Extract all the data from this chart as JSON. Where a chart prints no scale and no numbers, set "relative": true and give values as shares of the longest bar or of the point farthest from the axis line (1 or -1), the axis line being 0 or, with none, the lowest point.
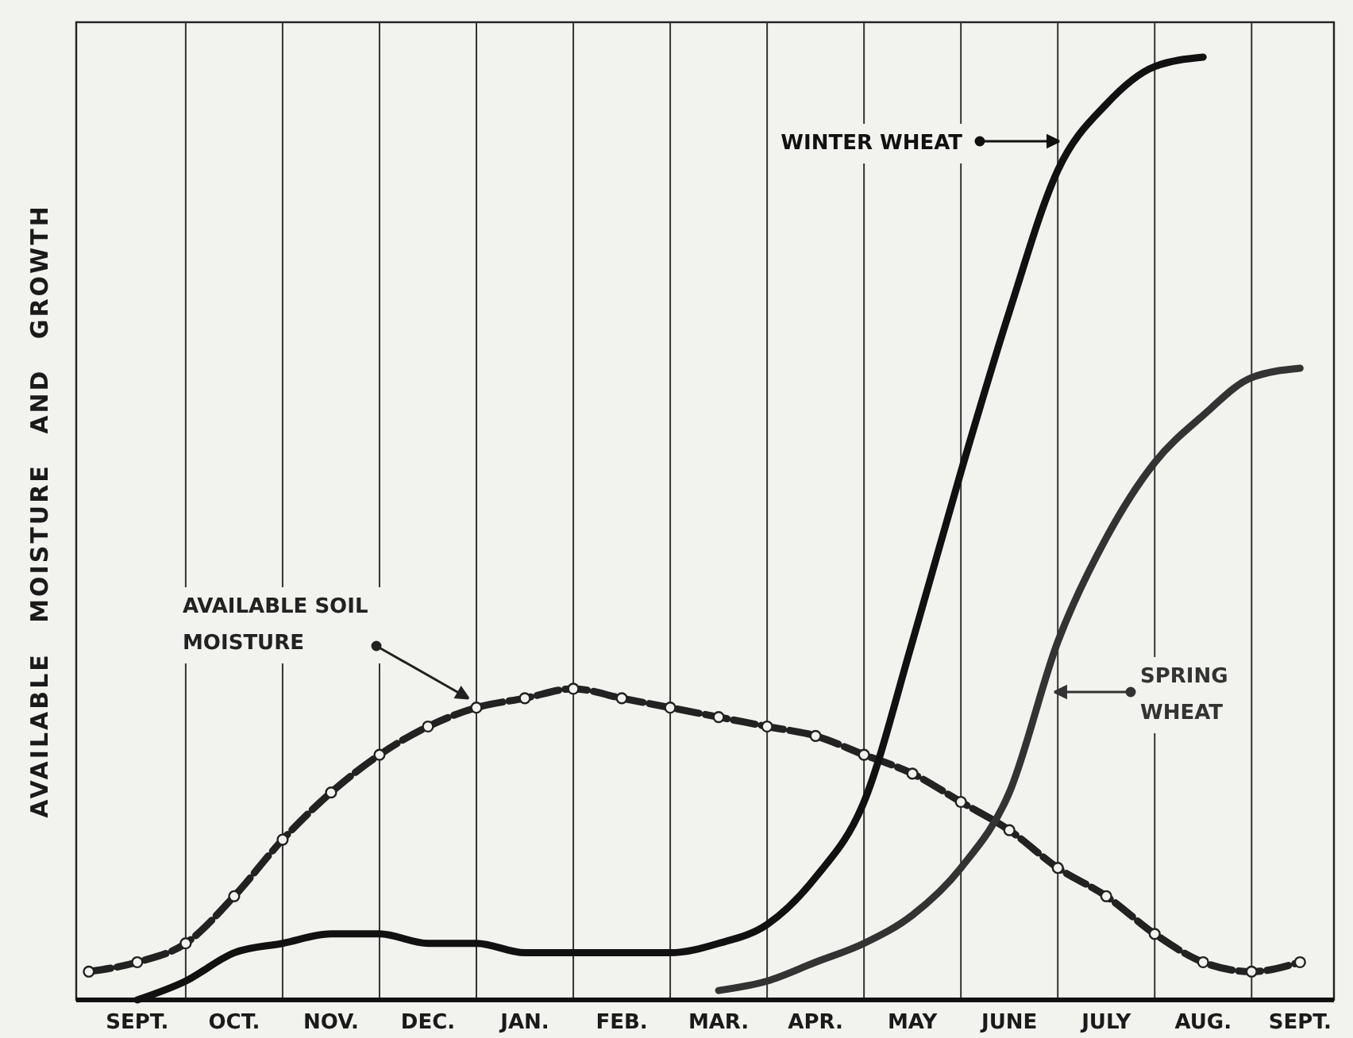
{
  "chart_data": {
    "type": "line",
    "relative": true,
    "ylabel": "AVAILABLE MOISTURE AND GROWTH",
    "categories": [
      null,
      "SEPT.",
      null,
      "OCT.",
      null,
      "NOV.",
      null,
      "DEC.",
      null,
      "JAN.",
      null,
      "FEB.",
      null,
      "MAR.",
      null,
      "APR.",
      null,
      "MAY",
      null,
      "JUNE",
      null,
      "JULY",
      null,
      "AUG.",
      null,
      "SEPT."
    ],
    "grid": "x",
    "series": [
      {
        "name": "AVAILABLE SOIL MOISTURE",
        "color": "#222222",
        "marker": "circle",
        "line_style": "dashed",
        "values": [
          0.03,
          0.04,
          0.06,
          0.11,
          0.17,
          0.22,
          0.26,
          0.29,
          0.31,
          0.32,
          0.33,
          0.32,
          0.31,
          0.3,
          0.29,
          0.28,
          0.26,
          0.24,
          0.21,
          0.18,
          0.14,
          0.11,
          0.07,
          0.04,
          0.03,
          0.04
        ]
      },
      {
        "name": "WINTER WHEAT",
        "color": "#111111",
        "marker": "none",
        "line_style": "solid",
        "values": [
          null,
          0,
          0.02,
          0.05,
          0.06,
          0.07,
          0.07,
          0.06,
          0.06,
          0.05,
          0.05,
          0.05,
          0.05,
          0.06,
          0.08,
          0.13,
          0.21,
          0.38,
          0.56,
          0.73,
          0.88,
          0.95,
          0.99,
          1.0,
          null,
          null
        ]
      },
      {
        "name": "SPRING WHEAT",
        "color": "#333333",
        "marker": "none",
        "line_style": "solid",
        "values": [
          null,
          null,
          null,
          null,
          null,
          null,
          null,
          null,
          null,
          null,
          null,
          null,
          null,
          0.01,
          0.02,
          0.04,
          0.06,
          0.09,
          0.14,
          0.22,
          0.38,
          0.49,
          0.57,
          0.62,
          0.66,
          0.67
        ]
      }
    ]
  }
}
